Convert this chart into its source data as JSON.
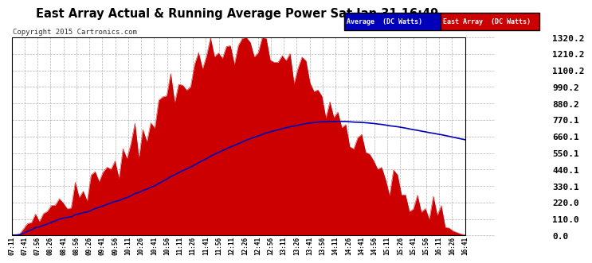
{
  "title": "East Array Actual & Running Average Power Sat Jan 31 16:49",
  "copyright": "Copyright 2015 Cartronics.com",
  "legend_labels": [
    "Average  (DC Watts)",
    "East Array  (DC Watts)"
  ],
  "legend_colors": [
    "#0000bb",
    "#cc0000"
  ],
  "y_ticks": [
    0.0,
    110.0,
    220.0,
    330.1,
    440.1,
    550.1,
    660.1,
    770.1,
    880.2,
    990.2,
    1100.2,
    1210.2,
    1320.2
  ],
  "y_min": 0.0,
  "y_max": 1320.2,
  "bg_color": "#ffffff",
  "east_array_color": "#cc0000",
  "average_color": "#0000bb",
  "grid_color": "#aaaaaa",
  "title_color": "#000000",
  "fig_bg_color": "#ffffff",
  "x_labels": [
    "07:11",
    "07:41",
    "07:56",
    "08:26",
    "08:41",
    "08:56",
    "09:26",
    "09:41",
    "09:56",
    "10:11",
    "10:26",
    "10:41",
    "10:56",
    "11:11",
    "11:26",
    "11:41",
    "11:56",
    "12:11",
    "12:26",
    "12:41",
    "12:56",
    "13:11",
    "13:26",
    "13:41",
    "13:56",
    "14:11",
    "14:26",
    "14:41",
    "14:56",
    "15:11",
    "15:26",
    "15:41",
    "15:56",
    "16:11",
    "16:26",
    "16:41"
  ]
}
